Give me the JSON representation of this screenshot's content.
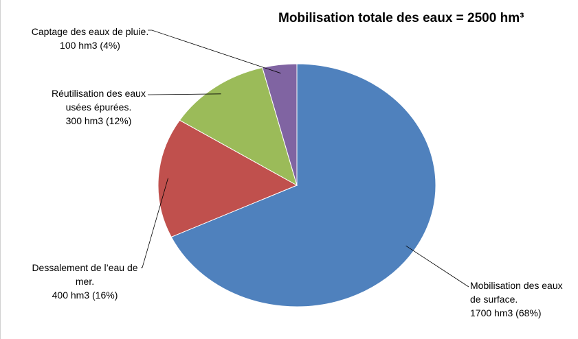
{
  "chart_data": {
    "type": "pie",
    "title": "Mobilisation totale des eaux  = 2500 hm³",
    "categories": [
      "Mobilisation des eaux de surface.",
      "Dessalement de l’eau de mer.",
      "Réutilisation des eaux usées épurées.",
      "Captage des eaux de pluie."
    ],
    "values": [
      1700,
      400,
      300,
      100
    ],
    "value_labels": [
      "1700 hm3 (68%)",
      "400 hm3 (16%)",
      "300 hm3 (12%)",
      "100 hm3 (4%)"
    ],
    "colors": [
      "#4f81bd",
      "#c0504d",
      "#9bbb59",
      "#8064a2"
    ]
  }
}
